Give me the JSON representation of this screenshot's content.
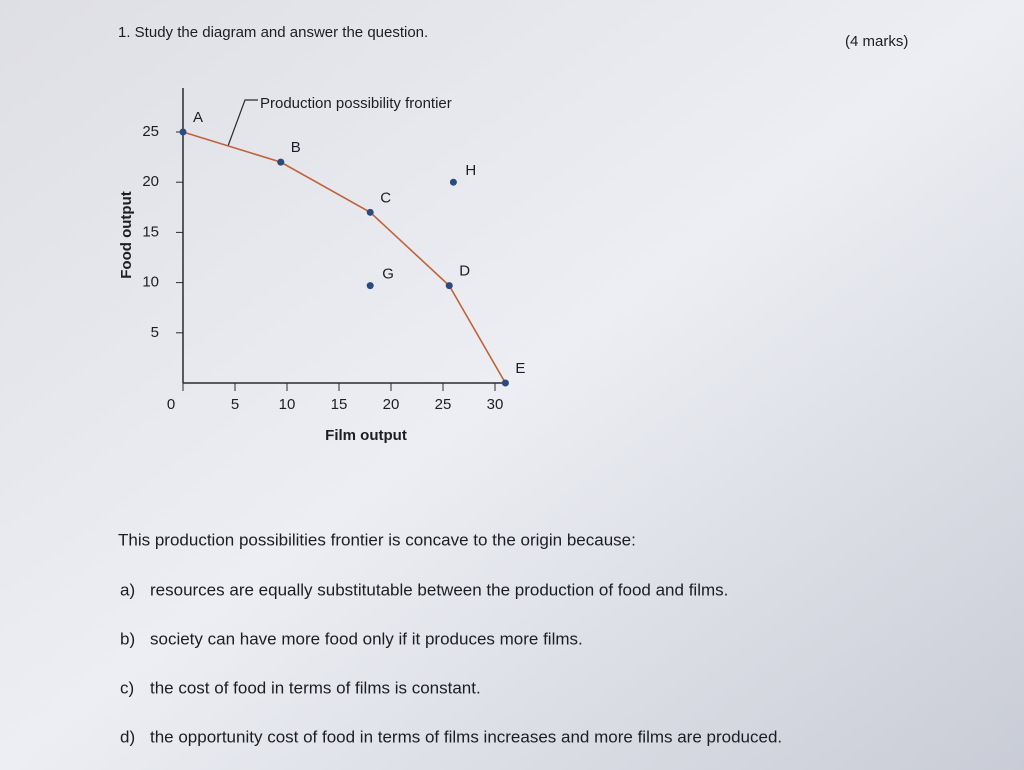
{
  "header": {
    "question": "1. Study the diagram and answer the question.",
    "marks": "(4 marks)"
  },
  "chart_data": {
    "type": "line",
    "annotation": "Production possibility frontier",
    "x_label": "Film output",
    "y_label": "Food output",
    "xlim": [
      0,
      31
    ],
    "ylim": [
      0,
      29
    ],
    "xticks": [
      0,
      5,
      10,
      15,
      20,
      25,
      30
    ],
    "yticks": [
      5,
      10,
      15,
      20,
      25
    ],
    "series": [
      {
        "name": "Production possibility frontier",
        "color": "#c0633a",
        "x": [
          0,
          9.4,
          18,
          25.6,
          31
        ],
        "values": [
          25,
          22,
          17,
          9.7,
          0
        ],
        "point_labels": [
          "A",
          "B",
          "C",
          "D",
          "E"
        ]
      }
    ],
    "points": [
      {
        "label": "G",
        "x": 18,
        "y": 9.7
      },
      {
        "label": "H",
        "x": 26,
        "y": 20
      }
    ]
  },
  "question": {
    "stem": "This production possibilities frontier is concave to the origin because:",
    "options": [
      {
        "letter": "a)",
        "text": "resources are equally substitutable between the production of food and films."
      },
      {
        "letter": "b)",
        "text": "society can have more food only if it produces more films."
      },
      {
        "letter": "c)",
        "text": "the cost of food in terms of films is constant."
      },
      {
        "letter": "d)",
        "text": "the opportunity cost of food in terms of films increases and more films are produced."
      }
    ]
  }
}
